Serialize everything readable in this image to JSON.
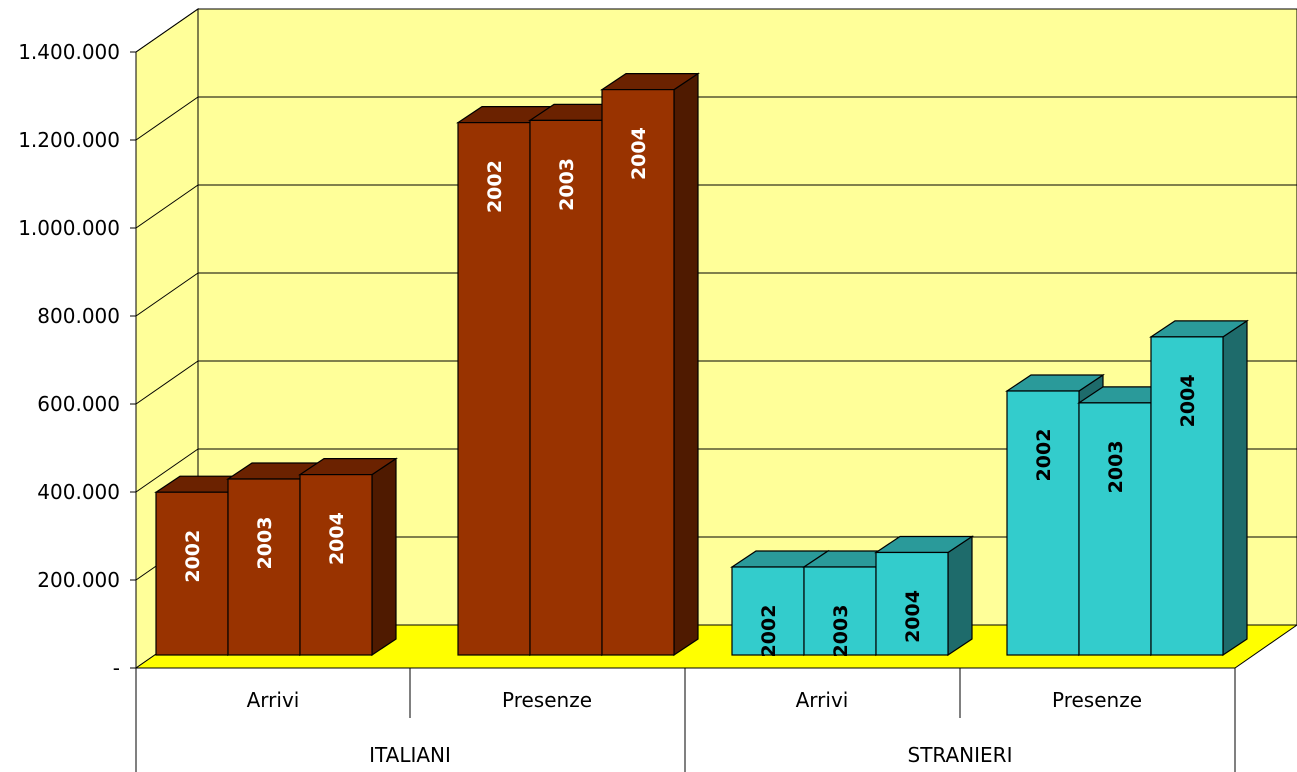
{
  "chart_data": {
    "type": "bar",
    "three_d": true,
    "ylim": [
      0,
      1400000
    ],
    "yticks": [
      "-",
      "200.000",
      "400.000",
      "600.000",
      "800.000",
      "1.000.000",
      "1.200.000",
      "1.400.000"
    ],
    "ytick_values": [
      0,
      200000,
      400000,
      600000,
      800000,
      1000000,
      1200000,
      1400000
    ],
    "grid": true,
    "groups": [
      {
        "label": "ITALIANI",
        "subgroups": [
          {
            "label": "Arrivi",
            "bars": [
              {
                "label": "2002",
                "value": 370000
              },
              {
                "label": "2003",
                "value": 400000
              },
              {
                "label": "2004",
                "value": 410000
              }
            ]
          },
          {
            "label": "Presenze",
            "bars": [
              {
                "label": "2002",
                "value": 1210000
              },
              {
                "label": "2003",
                "value": 1215000
              },
              {
                "label": "2004",
                "value": 1285000
              }
            ]
          }
        ]
      },
      {
        "label": "STRANIERI",
        "subgroups": [
          {
            "label": "Arrivi",
            "bars": [
              {
                "label": "2002",
                "value": 200000
              },
              {
                "label": "2003",
                "value": 200000
              },
              {
                "label": "2004",
                "value": 233000
              }
            ]
          },
          {
            "label": "Presenze",
            "bars": [
              {
                "label": "2002",
                "value": 600000
              },
              {
                "label": "2003",
                "value": 573000
              },
              {
                "label": "2004",
                "value": 723000
              }
            ]
          }
        ]
      }
    ],
    "colors": {
      "ITALIANI": {
        "front": "#993300",
        "top": "#6b2200",
        "side": "#4f1a00"
      },
      "STRANIERI": {
        "front": "#33cccc",
        "top": "#2a9a9a",
        "side": "#1e6b6b"
      },
      "wall": "#ffff99",
      "floor": "#ffff00"
    }
  }
}
